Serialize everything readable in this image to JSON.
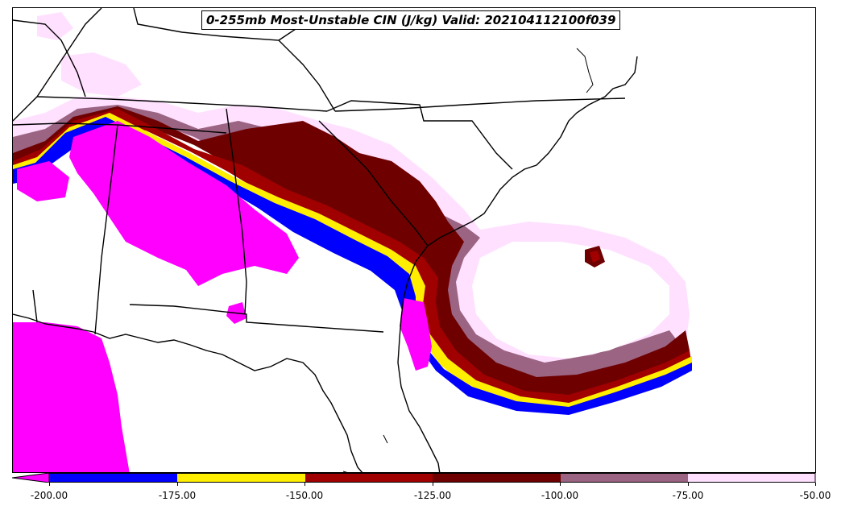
{
  "title": "0-255mb Most-Unstable CIN (J/kg) Valid: 202104112100f039",
  "colorbar": {
    "ticks": [
      "-200.00",
      "-175.00",
      "-150.00",
      "-125.00",
      "-100.00",
      "-75.00",
      "-50.00"
    ],
    "colors": [
      "#ff00ff",
      "#0000ff",
      "#ffee00",
      "#a00000",
      "#6e0000",
      "#9b6482",
      "#ffe0ff"
    ],
    "extend": "min"
  },
  "legend_colors": {
    "lt_-200": "#ff00ff",
    "-200_-175": "#0000ff",
    "-175_-150": "#ffee00",
    "-150_-125": "#a00000",
    "-125_-100": "#6e0000",
    "-100_-75": "#9b6482",
    "-75_-50": "#ffe0ff"
  }
}
